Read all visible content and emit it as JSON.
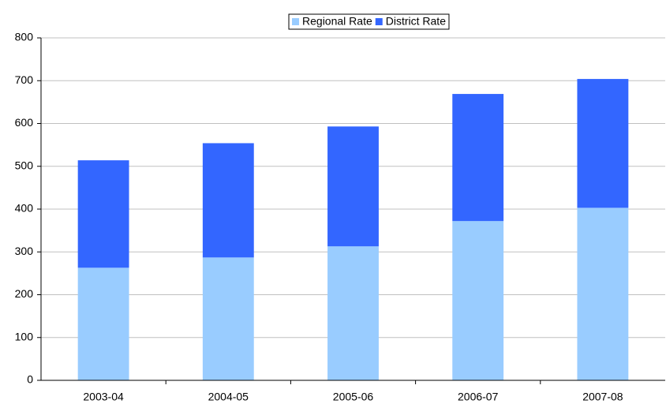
{
  "chart_data": {
    "type": "stacked_bar",
    "categories": [
      "2003-04",
      "2004-05",
      "2005-06",
      "2006-07",
      "2007-08"
    ],
    "series": [
      {
        "name": "Regional Rate",
        "color": "#99ccff",
        "values": [
          263,
          287,
          313,
          372,
          403
        ]
      },
      {
        "name": "District Rate",
        "color": "#3366ff",
        "values": [
          251,
          267,
          280,
          297,
          301
        ]
      }
    ],
    "ylim": [
      0,
      800
    ],
    "yticks": [
      0,
      100,
      200,
      300,
      400,
      500,
      600,
      700,
      800
    ],
    "grid": true,
    "legend": "top"
  }
}
